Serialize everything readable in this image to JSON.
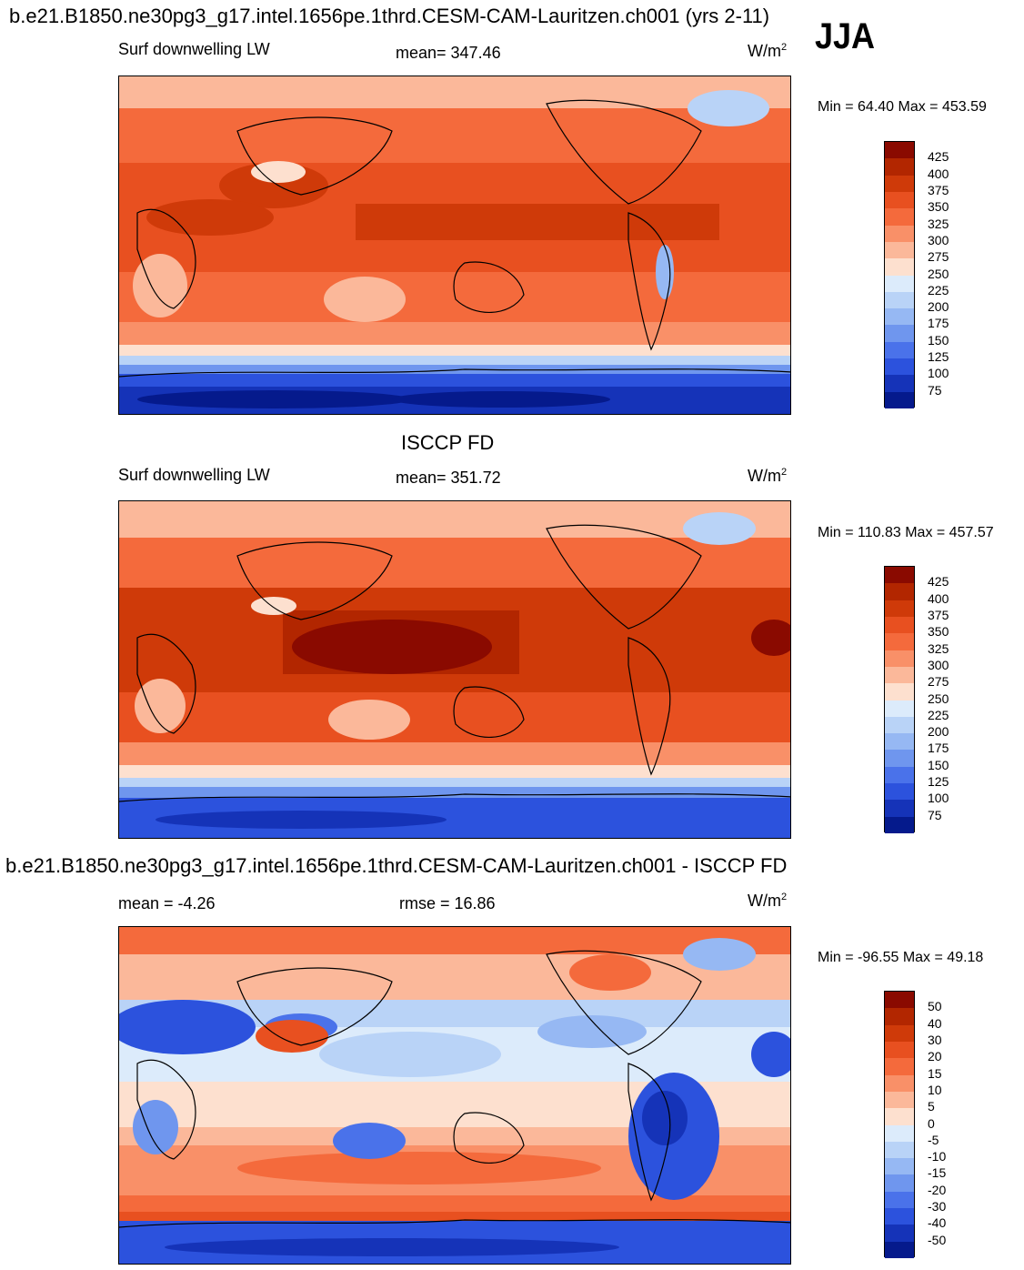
{
  "header": {
    "title": "b.e21.B1850.ne30pg3_g17.intel.1656pe.1thrd.CESM-CAM-Lauritzen.ch001 (yrs 2-11)",
    "season": "JJA"
  },
  "panels": [
    {
      "id": "model",
      "title": "",
      "left_label": "Surf downwelling LW",
      "center_label": "mean= 347.46",
      "units_base": "W/m",
      "units_exp": "2",
      "minmax": "Min =  64.40 Max = 453.59",
      "colorbar_labels": [
        "425",
        "400",
        "375",
        "350",
        "325",
        "300",
        "275",
        "250",
        "225",
        "200",
        "175",
        "150",
        "125",
        "100",
        "75"
      ]
    },
    {
      "id": "obs",
      "title": "ISCCP FD",
      "left_label": "Surf downwelling LW",
      "center_label": "mean= 351.72",
      "units_base": "W/m",
      "units_exp": "2",
      "minmax": "Min = 110.83 Max = 457.57",
      "colorbar_labels": [
        "425",
        "400",
        "375",
        "350",
        "325",
        "300",
        "275",
        "250",
        "225",
        "200",
        "175",
        "150",
        "125",
        "100",
        "75"
      ]
    },
    {
      "id": "diff",
      "title": "b.e21.B1850.ne30pg3_g17.intel.1656pe.1thrd.CESM-CAM-Lauritzen.ch001 - ISCCP FD",
      "left_label": "mean =  -4.26",
      "center_label": "rmse =  16.86",
      "units_base": "W/m",
      "units_exp": "2",
      "minmax": "Min = -96.55 Max =  49.18",
      "colorbar_labels": [
        "50",
        "40",
        "30",
        "20",
        "15",
        "10",
        "5",
        "0",
        "-5",
        "-10",
        "-15",
        "-20",
        "-30",
        "-40",
        "-50"
      ]
    }
  ],
  "colors": {
    "scale16": [
      "#8a0a00",
      "#b22600",
      "#cf3a09",
      "#e85020",
      "#f46a3c",
      "#f99068",
      "#fbb89a",
      "#fde0cf",
      "#dcebfb",
      "#b9d3f7",
      "#96b8f3",
      "#6f96ee",
      "#4a72ea",
      "#2c52dd",
      "#1533b8",
      "#051a8c"
    ],
    "coast": "#000000"
  }
}
